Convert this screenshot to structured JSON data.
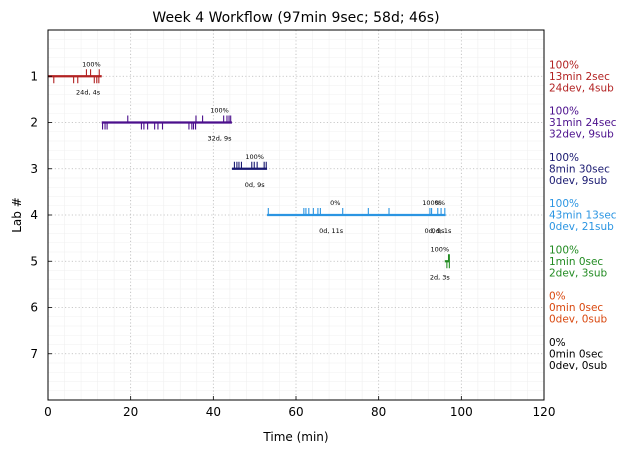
{
  "chart_data": {
    "type": "timeline",
    "title": "Week 4 Workflow (97min 9sec; 58d; 46s)",
    "xlabel": "Time (min)",
    "ylabel": "Lab #",
    "xlim": [
      0,
      120
    ],
    "ylim": [
      8,
      0
    ],
    "x_ticks": [
      0,
      20,
      40,
      60,
      80,
      100,
      120
    ],
    "y_ticks": [
      1,
      2,
      3,
      4,
      5,
      6,
      7
    ],
    "grid": true,
    "labs": [
      {
        "lab": 1,
        "color": "#b22222",
        "start": 0,
        "end": 13,
        "progress_label": "100%",
        "progress_x": 10.5,
        "counts_label": "24d, 4s",
        "counts_x": 9.7,
        "side_label": [
          "100%",
          "13min 2sec",
          "24dev, 4sub"
        ],
        "up_ticks": [
          9.3,
          10.3,
          12.4
        ],
        "down_ticks": [
          1.4,
          6.2,
          7.2,
          11.2,
          11.8,
          12.3
        ]
      },
      {
        "lab": 2,
        "color": "#4b0f8c",
        "start": 13,
        "end": 44.5,
        "progress_label": "100%",
        "progress_x": 41.5,
        "counts_label": "32d, 9s",
        "counts_x": 41.5,
        "side_label": [
          "100%",
          "31min 24sec",
          "32dev, 9sub"
        ],
        "up_ticks": [
          19.3,
          35.8,
          37.4,
          42.5,
          43.3,
          43.8,
          44.2
        ],
        "down_ticks": [
          13.2,
          13.8,
          14.3,
          22.6,
          23.2,
          24.1,
          25.8,
          26.6,
          27.7,
          34.1,
          34.8,
          35.2,
          35.7
        ]
      },
      {
        "lab": 3,
        "color": "#191970",
        "start": 44.5,
        "end": 53,
        "progress_label": "100%",
        "progress_x": 50,
        "counts_label": "0d, 9s",
        "counts_x": 50,
        "side_label": [
          "100%",
          "8min 30sec",
          "0dev, 9sub"
        ],
        "up_ticks": [
          45.1,
          45.7,
          46.2,
          46.8,
          49.3,
          49.9,
          50.6,
          52.3,
          52.8
        ],
        "down_ticks": []
      },
      {
        "lab": 4,
        "color": "#2b95e2",
        "start": 53,
        "end": 96.2,
        "progress_label": "0%",
        "progress_x": 69.5,
        "counts_label": "0d, 11s",
        "counts_x": 68.5,
        "progress_label_2": "100%",
        "progress_x_2": 92.8,
        "progress_label_3": "0%",
        "progress_x_3": 94.8,
        "counts_label_2": "0d, 9s",
        "counts_x_2": 93.5,
        "counts_label_3": "0d, 1s",
        "counts_x_3": 95.2,
        "side_label": [
          "100%",
          "43min 13sec",
          "0dev, 21sub"
        ],
        "up_ticks": [
          53.3,
          61.9,
          62.4,
          63.1,
          64.2,
          65.3,
          65.9,
          71.3,
          77.5,
          82.5,
          92.4,
          92.8,
          94.3,
          95.1,
          96.0
        ],
        "down_ticks": []
      },
      {
        "lab": 5,
        "color": "#228b22",
        "start": 96,
        "end": 97.1,
        "progress_label": "100%",
        "progress_x": 94.8,
        "counts_label": "2d, 3s",
        "counts_x": 94.8,
        "side_label": [
          "100%",
          "1min 0sec",
          "2dev, 3sub"
        ],
        "up_ticks": [
          96.9,
          97.1
        ],
        "down_ticks": [
          96.5,
          97.1
        ]
      },
      {
        "lab": 6,
        "color": "#d9480f",
        "side_label": [
          "0%",
          "0min 0sec",
          "0dev, 0sub"
        ]
      },
      {
        "lab": 7,
        "color": "#000000",
        "side_label": [
          "0%",
          "0min 0sec",
          "0dev, 0sub"
        ]
      }
    ]
  }
}
